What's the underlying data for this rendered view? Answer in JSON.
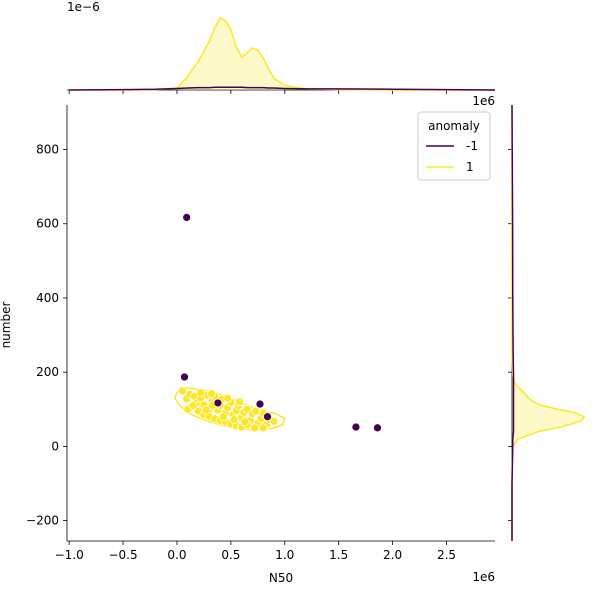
{
  "chart_data": {
    "type": "scatter",
    "xlabel": "N50",
    "ylabel": "number",
    "x_scale_label": "1e6",
    "y_scale_label_right": "1e6",
    "top_density_scale_label": "1e−6",
    "xlim": [
      -1.02,
      2.95
    ],
    "ylim": [
      -255,
      920
    ],
    "x_ticks": [
      -1.0,
      -0.5,
      0.0,
      0.5,
      1.0,
      1.5,
      2.0,
      2.5
    ],
    "x_tick_labels": [
      "−1.0",
      "−0.5",
      "0.0",
      "0.5",
      "1.0",
      "1.5",
      "2.0",
      "2.5"
    ],
    "y_ticks": [
      -200,
      0,
      200,
      400,
      600,
      800
    ],
    "y_tick_labels": [
      "−200",
      "0",
      "200",
      "400",
      "600",
      "800"
    ],
    "grid": false,
    "legend": {
      "title": "anomaly",
      "placement": "top-right"
    },
    "series": [
      {
        "name": "-1",
        "color": "#440154",
        "points": [
          [
            0.09,
            617
          ],
          [
            0.07,
            187
          ],
          [
            0.38,
            117
          ],
          [
            0.77,
            114
          ],
          [
            0.84,
            80
          ],
          [
            1.66,
            52
          ],
          [
            1.86,
            50
          ]
        ]
      },
      {
        "name": "1",
        "color": "#fde725",
        "points": [
          [
            0.05,
            150
          ],
          [
            0.09,
            128
          ],
          [
            0.12,
            140
          ],
          [
            0.16,
            135
          ],
          [
            0.19,
            118
          ],
          [
            0.22,
            130
          ],
          [
            0.25,
            112
          ],
          [
            0.28,
            138
          ],
          [
            0.3,
            100
          ],
          [
            0.33,
            122
          ],
          [
            0.35,
            135
          ],
          [
            0.38,
            98
          ],
          [
            0.4,
            110
          ],
          [
            0.42,
            128
          ],
          [
            0.45,
            90
          ],
          [
            0.47,
            105
          ],
          [
            0.5,
            118
          ],
          [
            0.52,
            85
          ],
          [
            0.55,
            96
          ],
          [
            0.57,
            110
          ],
          [
            0.6,
            78
          ],
          [
            0.62,
            92
          ],
          [
            0.65,
            100
          ],
          [
            0.68,
            70
          ],
          [
            0.7,
            88
          ],
          [
            0.73,
            95
          ],
          [
            0.75,
            62
          ],
          [
            0.78,
            75
          ],
          [
            0.8,
            90
          ],
          [
            0.83,
            58
          ],
          [
            0.86,
            72
          ],
          [
            0.9,
            68
          ],
          [
            0.1,
            100
          ],
          [
            0.15,
            110
          ],
          [
            0.2,
            95
          ],
          [
            0.25,
            85
          ],
          [
            0.3,
            80
          ],
          [
            0.35,
            75
          ],
          [
            0.4,
            70
          ],
          [
            0.45,
            65
          ],
          [
            0.5,
            60
          ],
          [
            0.55,
            55
          ],
          [
            0.6,
            52
          ],
          [
            0.65,
            58
          ],
          [
            0.72,
            50
          ],
          [
            0.8,
            50
          ],
          [
            0.27,
            98
          ],
          [
            0.33,
            110
          ],
          [
            0.43,
            80
          ],
          [
            0.53,
            72
          ],
          [
            0.63,
            66
          ],
          [
            0.22,
            145
          ],
          [
            0.32,
            142
          ],
          [
            0.47,
            130
          ],
          [
            0.58,
            120
          ]
        ]
      }
    ],
    "kde_top": {
      "x": [
        -1.0,
        -0.5,
        -0.2,
        0.0,
        0.1,
        0.2,
        0.3,
        0.35,
        0.4,
        0.45,
        0.5,
        0.55,
        0.6,
        0.65,
        0.7,
        0.75,
        0.8,
        0.85,
        0.9,
        1.0,
        1.2,
        1.5,
        2.0,
        2.5,
        2.95
      ],
      "density_1": [
        0.0,
        0.0,
        0.01,
        0.05,
        0.35,
        0.75,
        1.25,
        1.6,
        1.85,
        1.78,
        1.55,
        1.1,
        0.85,
        0.95,
        1.08,
        1.02,
        0.82,
        0.55,
        0.3,
        0.12,
        0.03,
        0.01,
        0.0,
        0.0,
        0.0
      ],
      "density_neg1": [
        0.0,
        0.01,
        0.02,
        0.04,
        0.05,
        0.06,
        0.06,
        0.07,
        0.07,
        0.07,
        0.07,
        0.07,
        0.07,
        0.06,
        0.06,
        0.06,
        0.06,
        0.05,
        0.05,
        0.04,
        0.03,
        0.03,
        0.02,
        0.01,
        0.0
      ]
    },
    "kde_right": {
      "y": [
        -255,
        -100,
        0,
        20,
        40,
        50,
        60,
        70,
        80,
        90,
        100,
        110,
        120,
        130,
        140,
        150,
        160,
        170,
        190,
        250,
        400,
        600,
        800,
        920
      ],
      "density_1": [
        0.0,
        0.0,
        0.01,
        0.08,
        0.35,
        0.6,
        0.78,
        0.92,
        0.95,
        0.85,
        0.6,
        0.4,
        0.28,
        0.22,
        0.18,
        0.13,
        0.08,
        0.04,
        0.01,
        0.0,
        0.0,
        0.0,
        0.0,
        0.0
      ],
      "density_neg1": [
        0.0,
        0.0,
        0.01,
        0.01,
        0.02,
        0.02,
        0.02,
        0.02,
        0.02,
        0.02,
        0.02,
        0.02,
        0.02,
        0.02,
        0.02,
        0.02,
        0.02,
        0.02,
        0.02,
        0.015,
        0.01,
        0.008,
        0.003,
        0.0
      ]
    },
    "contour_1": [
      [
        0.0,
        145
      ],
      [
        0.05,
        158
      ],
      [
        0.15,
        156
      ],
      [
        0.3,
        148
      ],
      [
        0.45,
        135
      ],
      [
        0.58,
        120
      ],
      [
        0.7,
        105
      ],
      [
        0.8,
        95
      ],
      [
        0.92,
        88
      ],
      [
        1.0,
        75
      ],
      [
        0.98,
        58
      ],
      [
        0.88,
        48
      ],
      [
        0.72,
        45
      ],
      [
        0.55,
        48
      ],
      [
        0.4,
        58
      ],
      [
        0.25,
        72
      ],
      [
        0.1,
        90
      ],
      [
        0.02,
        112
      ],
      [
        -0.02,
        130
      ],
      [
        0.0,
        145
      ]
    ]
  }
}
